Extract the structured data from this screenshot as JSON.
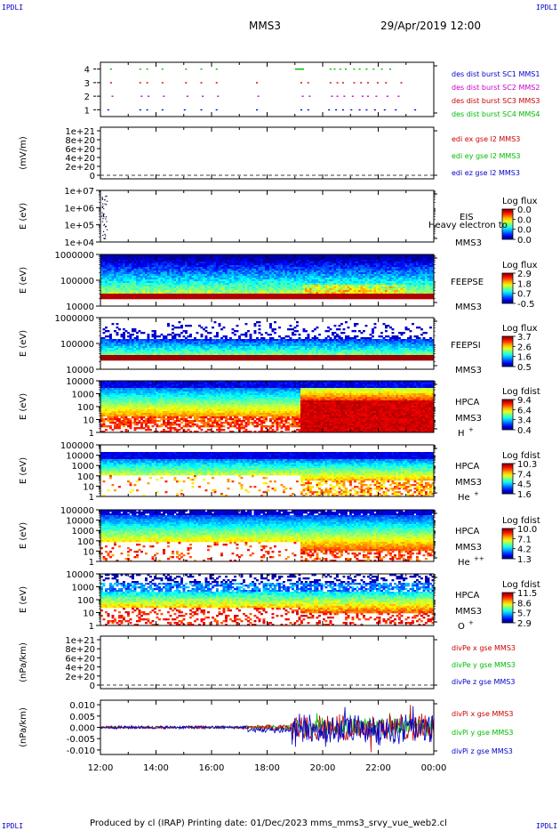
{
  "header": {
    "corner_label": "IPDLI",
    "spacecraft": "MMS3",
    "datetime": "29/Apr/2019 12:00"
  },
  "footer": {
    "text": "Produced by cl (IRAP)   Printing date: 01/Dec/2023   mms_mms3_srvy_vue_web2.cl"
  },
  "colors": {
    "blue": "#0000cc",
    "magenta": "#cc00cc",
    "red": "#cc0000",
    "green": "#00bb00"
  },
  "chart_data": [
    {
      "id": "burst",
      "type": "scatter",
      "yticks": [
        "1",
        "2",
        "3",
        "4"
      ],
      "ylim": [
        0.5,
        4.5
      ],
      "xlim": [
        "12:00",
        "00:00"
      ],
      "legend": [
        {
          "label": "des dist burst SC1 MMS1",
          "color": "#0000cc"
        },
        {
          "label": "des dist burst SC2 MMS2",
          "color": "#cc00cc"
        },
        {
          "label": "des dist burst SC3 MMS3",
          "color": "#cc0000"
        },
        {
          "label": "des dist burst SC4 MMS4",
          "color": "#00bb00"
        }
      ],
      "series": [
        {
          "y": 1,
          "color": "#0000cc",
          "x": [
            0.25,
            1.4,
            1.65,
            2.2,
            3.0,
            3.6,
            4.15,
            5.6,
            7.2,
            7.45,
            8.2,
            8.45,
            8.7,
            9.0,
            9.3,
            9.55,
            9.85,
            10.2,
            10.6,
            11.3
          ]
        },
        {
          "y": 2,
          "color": "#cc00cc",
          "x": [
            0.4,
            1.45,
            1.7,
            2.25,
            3.1,
            3.65,
            4.2,
            5.65,
            7.25,
            7.5,
            8.3,
            8.5,
            8.75,
            9.05,
            9.4,
            9.6,
            9.9,
            10.3,
            10.7
          ]
        },
        {
          "y": 3,
          "color": "#cc0000",
          "x": [
            0.35,
            1.4,
            1.65,
            2.2,
            3.05,
            3.6,
            4.15,
            5.6,
            7.2,
            7.45,
            8.25,
            8.5,
            8.7,
            9.1,
            9.35,
            9.6,
            9.95,
            10.25,
            10.8
          ]
        },
        {
          "y": 4,
          "color": "#00bb00",
          "x": [
            0.35,
            1.4,
            1.65,
            2.2,
            3.05,
            3.6,
            4.15,
            7.0,
            7.1,
            7.2,
            8.25,
            8.4,
            8.6,
            8.8,
            9.1,
            9.3,
            9.55,
            9.8,
            10.1,
            10.4
          ]
        }
      ]
    },
    {
      "id": "edi",
      "type": "line",
      "ylabel": "(mV/m)",
      "yticks": [
        "0",
        "2e+20",
        "4e+20",
        "6e+20",
        "8e+20",
        "1e+21"
      ],
      "ylim": [
        0,
        1e+21
      ],
      "legend": [
        {
          "label": "edi ex gse l2 MMS3",
          "color": "#cc0000"
        },
        {
          "label": "edi ey gse l2 MMS3",
          "color": "#00bb00"
        },
        {
          "label": "edi ez gse l2 MMS3",
          "color": "#0000cc"
        }
      ]
    },
    {
      "id": "eis",
      "type": "heatmap",
      "ylabel": "E (eV)",
      "yticks": [
        "1e+04",
        "1e+05",
        "1e+06",
        "1e+07"
      ],
      "instrument": "EIS",
      "sc": "MMS3",
      "overlay_text": "Heavy electron to",
      "cbar_title": "Log flux",
      "cbar_ticks": [
        "0.0",
        "0.0",
        "0.0",
        "0.0"
      ]
    },
    {
      "id": "feepse",
      "type": "heatmap",
      "ylabel": "E (eV)",
      "yticks": [
        "10000",
        "100000",
        "1000000"
      ],
      "instrument": "FEEPSE",
      "sc": "MMS3",
      "cbar_title": "Log flux",
      "cbar_ticks": [
        "2.9",
        "1.8",
        "0.7",
        "-0.5"
      ]
    },
    {
      "id": "feepsi",
      "type": "heatmap",
      "ylabel": "E (eV)",
      "yticks": [
        "10000",
        "100000",
        "1000000"
      ],
      "instrument": "FEEPSI",
      "sc": "MMS3",
      "cbar_title": "Log flux",
      "cbar_ticks": [
        "3.7",
        "2.6",
        "1.6",
        "0.5"
      ]
    },
    {
      "id": "hpca_h",
      "type": "heatmap",
      "ylabel": "E (eV)",
      "yticks": [
        "1",
        "10",
        "100",
        "1000",
        "10000"
      ],
      "instrument": "HPCA",
      "sc": "MMS3",
      "species": "H",
      "species_sup": "+",
      "cbar_title": "Log fdist",
      "cbar_ticks": [
        "9.4",
        "6.4",
        "3.4",
        "0.4"
      ]
    },
    {
      "id": "hpca_he",
      "type": "heatmap",
      "ylabel": "E (eV)",
      "yticks": [
        "1",
        "10",
        "100",
        "1000",
        "10000",
        "100000"
      ],
      "instrument": "HPCA",
      "sc": "MMS3",
      "species": "He",
      "species_sup": "+",
      "cbar_title": "Log fdist",
      "cbar_ticks": [
        "10.3",
        "7.4",
        "4.5",
        "1.6"
      ]
    },
    {
      "id": "hpca_hepp",
      "type": "heatmap",
      "ylabel": "E (eV)",
      "yticks": [
        "1",
        "10",
        "100",
        "1000",
        "10000",
        "100000"
      ],
      "instrument": "HPCA",
      "sc": "MMS3",
      "species": "He",
      "species_sup": "++",
      "cbar_title": "Log fdist",
      "cbar_ticks": [
        "10.0",
        "7.1",
        "4.2",
        "1.3"
      ]
    },
    {
      "id": "hpca_o",
      "type": "heatmap",
      "ylabel": "E (eV)",
      "yticks": [
        "1",
        "10",
        "100",
        "1000",
        "10000"
      ],
      "instrument": "HPCA",
      "sc": "MMS3",
      "species": "O",
      "species_sup": "+",
      "cbar_title": "Log fdist",
      "cbar_ticks": [
        "11.5",
        "8.6",
        "5.7",
        "2.9"
      ]
    },
    {
      "id": "divpe",
      "type": "line",
      "ylabel": "(nPa/km)",
      "yticks": [
        "0",
        "2e+20",
        "4e+20",
        "6e+20",
        "8e+20",
        "1e+21"
      ],
      "ylim": [
        0,
        1e+21
      ],
      "legend": [
        {
          "label": "divPe x gse MMS3",
          "color": "#cc0000"
        },
        {
          "label": "divPe y gse MMS3",
          "color": "#00bb00"
        },
        {
          "label": "divPe z gse MMS3",
          "color": "#0000cc"
        }
      ]
    },
    {
      "id": "divpi",
      "type": "line",
      "ylabel": "(nPa/km)",
      "yticks": [
        "-0.010",
        "-0.005",
        "0.000",
        "0.005",
        "0.010"
      ],
      "ylim": [
        -0.012,
        0.012
      ],
      "legend": [
        {
          "label": "divPi x gse MMS3",
          "color": "#cc0000"
        },
        {
          "label": "divPi y gse MMS3",
          "color": "#00bb00"
        },
        {
          "label": "divPi z gse MMS3",
          "color": "#0000cc"
        }
      ]
    }
  ],
  "xaxis": {
    "ticks": [
      "12:00",
      "14:00",
      "16:00",
      "18:00",
      "20:00",
      "22:00",
      "00:00"
    ]
  }
}
